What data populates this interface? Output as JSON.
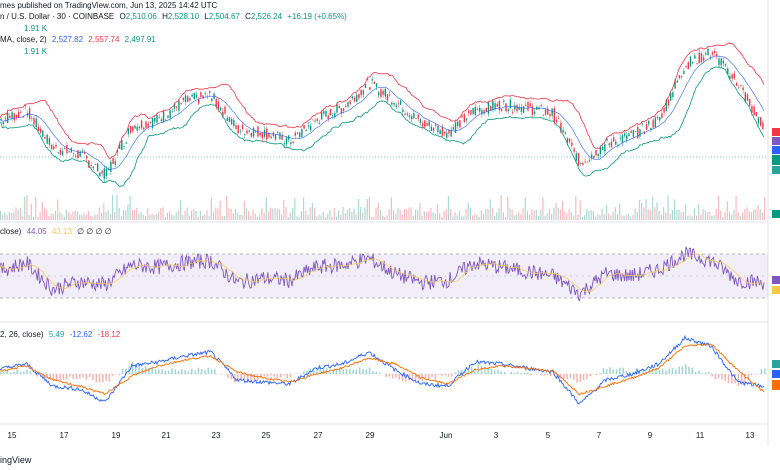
{
  "header": {
    "line1": "mes published on TradingView.com, Jun 13, 2025 14:42 UTC",
    "symbol": "n / U.S. Dollar · 30 · COINBASE",
    "o_label": "O",
    "o_val": "2,510.06",
    "h_label": "H",
    "h_val": "2,528.10",
    "l_label": "L",
    "l_val": "2,504.67",
    "c_label": "C",
    "c_val": "2,526.24",
    "change": "+16.19 (+0.65%)",
    "vol_line": "1.91 K",
    "bb_label": "MA, close, 2)",
    "bb_mid": "2,527.82",
    "bb_up": "2,557.74",
    "bb_low": "2,497.91",
    "vol2": "1.91 K"
  },
  "rsi_header": {
    "label": "close)",
    "v1": "44.05",
    "v2": "43.13",
    "zeros": "∅ ∅ ∅ ∅"
  },
  "macd_header": {
    "label": "2, 26, close)",
    "v1": "5.49",
    "v2": "-12.62",
    "v3": "-18.12"
  },
  "footer": {
    "brand": "ingView"
  },
  "colors": {
    "up": "#089981",
    "down": "#f23645",
    "bb_upper": "#f23645",
    "bb_lower": "#089981",
    "bb_mid": "#2962ff",
    "rsi": "#7e57c2",
    "rsi_ma": "#f7c948",
    "macd": "#2962ff",
    "signal": "#ff6d00"
  },
  "chart_data": [
    {
      "type": "candlestick",
      "title": "n / U.S. Dollar · 30 · COINBASE",
      "x_ticks": [
        "15",
        "17",
        "19",
        "21",
        "23",
        "25",
        "27",
        "29",
        "Jun",
        "3",
        "5",
        "7",
        "9",
        "11",
        "13"
      ],
      "x": [
        "15",
        "16",
        "17",
        "18",
        "19",
        "20",
        "21",
        "22",
        "23",
        "24",
        "25",
        "26",
        "27",
        "28",
        "29",
        "30",
        "31",
        "Jun",
        "2",
        "3",
        "4",
        "5",
        "6",
        "7",
        "8",
        "9",
        "10",
        "11",
        "12",
        "13"
      ],
      "close": [
        2560,
        2590,
        2470,
        2450,
        2380,
        2540,
        2560,
        2620,
        2640,
        2530,
        2520,
        2490,
        2560,
        2600,
        2680,
        2620,
        2550,
        2520,
        2590,
        2610,
        2600,
        2580,
        2420,
        2480,
        2510,
        2560,
        2740,
        2780,
        2680,
        2526
      ]
    },
    {
      "type": "line",
      "title": "RSI",
      "series": [
        {
          "name": "RSI",
          "values": [
            55,
            62,
            38,
            45,
            42,
            60,
            58,
            62,
            64,
            44,
            48,
            46,
            58,
            60,
            66,
            52,
            44,
            46,
            62,
            58,
            54,
            50,
            34,
            52,
            50,
            56,
            70,
            64,
            46,
            44.05
          ]
        }
      ]
    },
    {
      "type": "line",
      "title": "MACD",
      "series": [
        {
          "name": "MACD",
          "values": [
            5,
            10,
            -12,
            -15,
            -28,
            8,
            12,
            18,
            22,
            -6,
            -8,
            -10,
            6,
            10,
            22,
            4,
            -10,
            -12,
            12,
            10,
            6,
            2,
            -30,
            -6,
            0,
            10,
            36,
            28,
            -8,
            -12.62
          ]
        },
        {
          "name": "Signal",
          "values": [
            3,
            8,
            -6,
            -12,
            -20,
            -2,
            8,
            14,
            18,
            2,
            -4,
            -8,
            0,
            6,
            16,
            10,
            -4,
            -10,
            4,
            8,
            6,
            3,
            -20,
            -12,
            -4,
            6,
            28,
            30,
            4,
            -18.12
          ]
        }
      ]
    }
  ]
}
